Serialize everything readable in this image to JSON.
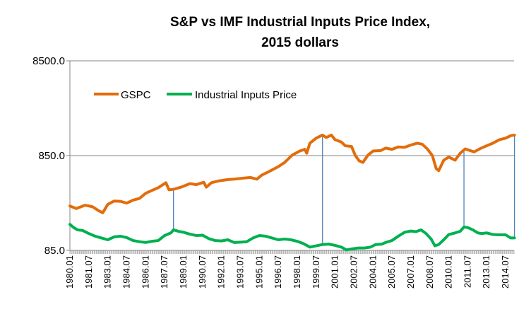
{
  "chart_data": {
    "type": "line",
    "title_lines": [
      "S&P vs IMF Industrial Inputs Price Index,",
      "2015 dollars"
    ],
    "xlabel": "",
    "ylabel": "",
    "y_scale": "log",
    "ylim": [
      85.0,
      8500.0
    ],
    "y_tick_labels": [
      "8500.0",
      "850.0",
      "85.0"
    ],
    "y_tick_values": [
      8500,
      850,
      85
    ],
    "x_tick_labels": [
      "1980.01",
      "1981.07",
      "1983.01",
      "1984.07",
      "1986.01",
      "1987.07",
      "1989.01",
      "1990.07",
      "1992.01",
      "1993.07",
      "1995.01",
      "1996.07",
      "1998.01",
      "1999.07",
      "2001.01",
      "2002.07",
      "2004.01",
      "2005.07",
      "2007.01",
      "2008.07",
      "2010.01",
      "2011.07",
      "2013.01",
      "2014.07"
    ],
    "x_range": [
      "1980.01",
      "2015.03"
    ],
    "gridlines": "horizontal",
    "legend_position": "top-left",
    "series": [
      {
        "name": "GSPC",
        "color": "#E36C0A",
        "points": [
          [
            1980.0,
            250
          ],
          [
            1980.5,
            235
          ],
          [
            1981.2,
            255
          ],
          [
            1981.8,
            245
          ],
          [
            1982.3,
            222
          ],
          [
            1982.6,
            212
          ],
          [
            1983.0,
            260
          ],
          [
            1983.5,
            282
          ],
          [
            1984.0,
            280
          ],
          [
            1984.5,
            268
          ],
          [
            1985.0,
            288
          ],
          [
            1985.5,
            300
          ],
          [
            1986.0,
            340
          ],
          [
            1986.5,
            365
          ],
          [
            1987.0,
            390
          ],
          [
            1987.6,
            440
          ],
          [
            1987.85,
            370
          ],
          [
            1988.2,
            375
          ],
          [
            1988.8,
            395
          ],
          [
            1989.5,
            430
          ],
          [
            1990.0,
            420
          ],
          [
            1990.6,
            445
          ],
          [
            1990.8,
            395
          ],
          [
            1991.2,
            440
          ],
          [
            1991.8,
            460
          ],
          [
            1992.5,
            475
          ],
          [
            1993.0,
            480
          ],
          [
            1993.6,
            490
          ],
          [
            1994.3,
            500
          ],
          [
            1994.8,
            480
          ],
          [
            1995.2,
            530
          ],
          [
            1995.8,
            580
          ],
          [
            1996.5,
            650
          ],
          [
            1997.0,
            720
          ],
          [
            1997.6,
            860
          ],
          [
            1998.2,
            950
          ],
          [
            1998.6,
            990
          ],
          [
            1998.75,
            900
          ],
          [
            1999.0,
            1150
          ],
          [
            1999.5,
            1300
          ],
          [
            2000.0,
            1400
          ],
          [
            2000.3,
            1320
          ],
          [
            2000.7,
            1400
          ],
          [
            2001.0,
            1250
          ],
          [
            2001.5,
            1180
          ],
          [
            2001.8,
            1080
          ],
          [
            2002.3,
            1060
          ],
          [
            2002.6,
            850
          ],
          [
            2002.9,
            750
          ],
          [
            2003.2,
            720
          ],
          [
            2003.6,
            860
          ],
          [
            2004.0,
            950
          ],
          [
            2004.6,
            960
          ],
          [
            2005.0,
            1020
          ],
          [
            2005.5,
            990
          ],
          [
            2006.0,
            1050
          ],
          [
            2006.5,
            1040
          ],
          [
            2007.0,
            1100
          ],
          [
            2007.5,
            1150
          ],
          [
            2007.9,
            1120
          ],
          [
            2008.3,
            1000
          ],
          [
            2008.7,
            850
          ],
          [
            2009.0,
            620
          ],
          [
            2009.2,
            590
          ],
          [
            2009.6,
            760
          ],
          [
            2010.0,
            820
          ],
          [
            2010.5,
            760
          ],
          [
            2010.9,
            900
          ],
          [
            2011.3,
            1000
          ],
          [
            2011.7,
            960
          ],
          [
            2012.0,
            930
          ],
          [
            2012.5,
            1010
          ],
          [
            2013.0,
            1080
          ],
          [
            2013.5,
            1150
          ],
          [
            2014.0,
            1250
          ],
          [
            2014.5,
            1300
          ],
          [
            2014.9,
            1380
          ],
          [
            2015.2,
            1400
          ]
        ]
      },
      {
        "name": "Industrial Inputs Price",
        "color": "#00B050",
        "points": [
          [
            1980.0,
            160
          ],
          [
            1980.3,
            148
          ],
          [
            1980.6,
            140
          ],
          [
            1981.0,
            138
          ],
          [
            1981.5,
            128
          ],
          [
            1982.0,
            120
          ],
          [
            1982.5,
            115
          ],
          [
            1983.0,
            110
          ],
          [
            1983.5,
            118
          ],
          [
            1984.0,
            120
          ],
          [
            1984.5,
            116
          ],
          [
            1985.0,
            108
          ],
          [
            1985.5,
            105
          ],
          [
            1986.0,
            103
          ],
          [
            1986.5,
            106
          ],
          [
            1987.0,
            108
          ],
          [
            1987.5,
            122
          ],
          [
            1988.0,
            130
          ],
          [
            1988.2,
            140
          ],
          [
            1988.6,
            135
          ],
          [
            1989.0,
            132
          ],
          [
            1989.5,
            126
          ],
          [
            1990.0,
            122
          ],
          [
            1990.5,
            123
          ],
          [
            1991.0,
            113
          ],
          [
            1991.5,
            108
          ],
          [
            1992.0,
            107
          ],
          [
            1992.5,
            110
          ],
          [
            1993.0,
            103
          ],
          [
            1993.6,
            104
          ],
          [
            1994.0,
            105
          ],
          [
            1994.5,
            115
          ],
          [
            1995.0,
            122
          ],
          [
            1995.5,
            120
          ],
          [
            1996.0,
            115
          ],
          [
            1996.5,
            110
          ],
          [
            1997.0,
            112
          ],
          [
            1997.5,
            110
          ],
          [
            1998.0,
            106
          ],
          [
            1998.5,
            100
          ],
          [
            1999.0,
            92
          ],
          [
            1999.5,
            95
          ],
          [
            2000.0,
            98
          ],
          [
            2000.5,
            99
          ],
          [
            2001.0,
            96
          ],
          [
            2001.5,
            92
          ],
          [
            2001.9,
            86
          ],
          [
            2002.3,
            88
          ],
          [
            2002.8,
            90
          ],
          [
            2003.3,
            90
          ],
          [
            2003.8,
            92
          ],
          [
            2004.2,
            98
          ],
          [
            2004.7,
            99
          ],
          [
            2005.0,
            103
          ],
          [
            2005.5,
            108
          ],
          [
            2006.0,
            120
          ],
          [
            2006.5,
            132
          ],
          [
            2007.0,
            136
          ],
          [
            2007.4,
            134
          ],
          [
            2007.8,
            140
          ],
          [
            2008.2,
            128
          ],
          [
            2008.6,
            112
          ],
          [
            2008.9,
            95
          ],
          [
            2009.2,
            98
          ],
          [
            2009.6,
            110
          ],
          [
            2010.0,
            125
          ],
          [
            2010.5,
            130
          ],
          [
            2010.9,
            135
          ],
          [
            2011.2,
            150
          ],
          [
            2011.5,
            148
          ],
          [
            2011.9,
            140
          ],
          [
            2012.3,
            130
          ],
          [
            2012.6,
            128
          ],
          [
            2013.0,
            130
          ],
          [
            2013.5,
            125
          ],
          [
            2014.0,
            124
          ],
          [
            2014.5,
            124
          ],
          [
            2014.9,
            115
          ],
          [
            2015.2,
            115
          ]
        ]
      }
    ],
    "connector_lines": [
      {
        "x": 1988.2,
        "from": "GSPC",
        "to": "Industrial Inputs Price"
      },
      {
        "x": 2000.0,
        "from": "GSPC",
        "to": "Industrial Inputs Price"
      },
      {
        "x": 2011.2,
        "from": "GSPC",
        "to": "Industrial Inputs Price"
      },
      {
        "x": 2015.2,
        "from": "GSPC",
        "to": "Industrial Inputs Price"
      }
    ],
    "connector_color": "#4F81BD",
    "axis_color": "#868686",
    "grid_color": "#868686"
  }
}
